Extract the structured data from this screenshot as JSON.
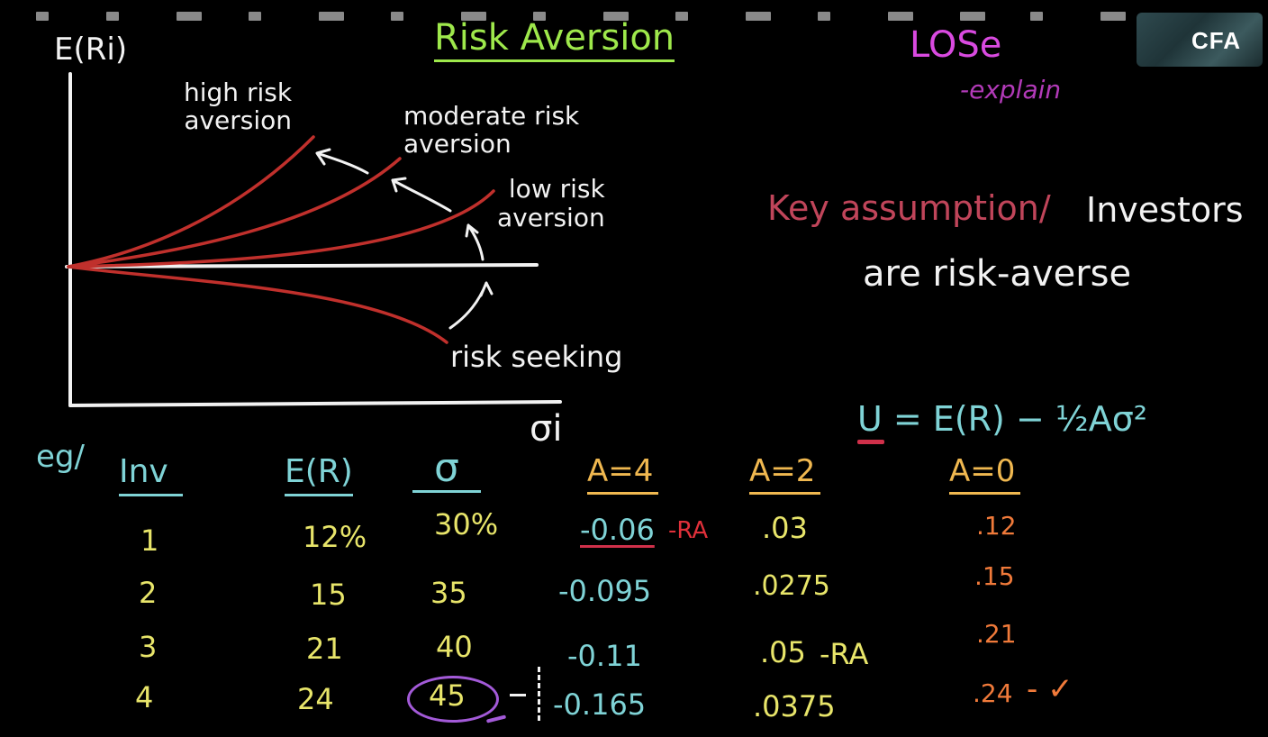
{
  "title": "Risk Aversion",
  "los": {
    "label": "LOSe",
    "sub": "-explain"
  },
  "logo": "CFA",
  "graph": {
    "y_axis_label": "E(Ri)",
    "x_axis_label": "σi",
    "curves": {
      "high": "high risk\naversion",
      "moderate": "moderate risk\naversion",
      "low": "low risk\naversion",
      "seeking": "risk seeking"
    }
  },
  "assumption": {
    "label": "Key assumption/",
    "line1": "Investors",
    "line2": "are risk-averse"
  },
  "formula": "U = E(R) − ½Aσ²",
  "table": {
    "eg": "eg/",
    "headers": [
      "Inv",
      "E(R)",
      "σ",
      "A=4",
      "A=2",
      "A=0"
    ],
    "rows": [
      {
        "inv": "1",
        "er": "12%",
        "sd": "30%",
        "a4": "-0.06",
        "a4_note": "-RA",
        "a2": ".03",
        "a2_note": "",
        "a0": ".12",
        "a0_note": ""
      },
      {
        "inv": "2",
        "er": "15",
        "sd": "35",
        "a4": "-0.095",
        "a4_note": "",
        "a2": ".0275",
        "a2_note": "",
        "a0": ".15",
        "a0_note": ""
      },
      {
        "inv": "3",
        "er": "21",
        "sd": "40",
        "a4": "-0.11",
        "a4_note": "",
        "a2": ".05",
        "a2_note": "-RA",
        "a0": ".21",
        "a0_note": ""
      },
      {
        "inv": "4",
        "er": "24",
        "sd": "45",
        "a4": "-0.165",
        "a4_note": "",
        "a2": ".0375",
        "a2_note": "",
        "a0": ".24",
        "a0_note": "- ✓"
      }
    ]
  },
  "colors": {
    "title": "#9ee84b",
    "los": "#d94ae0",
    "curve": "#c0302c",
    "axis": "#f2f2f2",
    "teal": "#7fd3d6",
    "yellow": "#e8e56a",
    "orange": "#f0b850",
    "orange2": "#f07a3a",
    "circle": "#a35ad8"
  }
}
